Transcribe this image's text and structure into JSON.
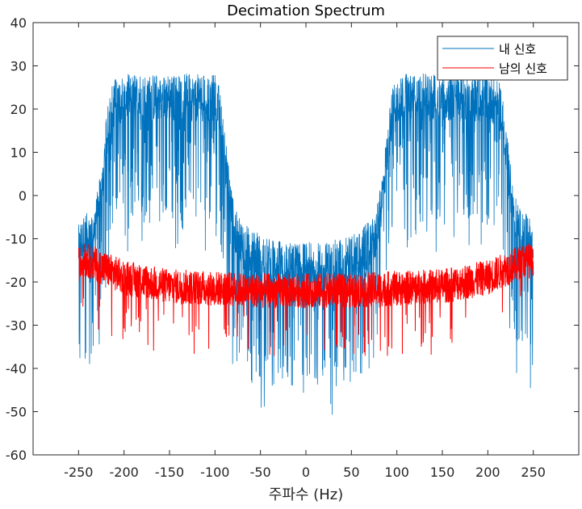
{
  "chart_data": {
    "type": "line",
    "title": "Decimation Spectrum",
    "xlabel": "주파수 (Hz)",
    "ylabel": "",
    "xlim": [
      -300,
      300
    ],
    "ylim": [
      -60,
      40
    ],
    "xticks": [
      -250,
      -200,
      -150,
      -100,
      -50,
      0,
      50,
      100,
      150,
      200,
      250
    ],
    "yticks": [
      -60,
      -50,
      -40,
      -30,
      -20,
      -10,
      0,
      10,
      20,
      30,
      40
    ],
    "grid": false,
    "legend_position": "top-right",
    "series": [
      {
        "name": "내 신호",
        "color": "#0072BD",
        "envelope_x": [
          -250,
          -245,
          -240,
          -235,
          -230,
          -225,
          -220,
          -215,
          -210,
          -200,
          -150,
          -100,
          -95,
          -90,
          -85,
          -80,
          -75,
          -60,
          -40,
          -20,
          0,
          20,
          40,
          60,
          75,
          80,
          85,
          90,
          95,
          100,
          150,
          200,
          210,
          215,
          220,
          225,
          230,
          235,
          240,
          245,
          250
        ],
        "envelope_mean": [
          -14,
          -12,
          -11,
          -10,
          -7,
          0,
          10,
          18,
          20,
          21,
          21,
          21,
          18,
          10,
          0,
          -8,
          -12,
          -15,
          -17,
          -18,
          -18,
          -18,
          -17,
          -15,
          -12,
          -8,
          0,
          10,
          18,
          21,
          21,
          21,
          20,
          18,
          10,
          0,
          -7,
          -10,
          -11,
          -12,
          -14
        ],
        "peak_max": 32,
        "peak_min": -52
      },
      {
        "name": "남의 신호",
        "color": "#FF0000",
        "envelope_x": [
          -250,
          -245,
          -240,
          -230,
          -220,
          -200,
          -150,
          -100,
          -50,
          0,
          50,
          100,
          150,
          200,
          220,
          230,
          240,
          245,
          250
        ],
        "envelope_mean": [
          -16,
          -15,
          -15,
          -16,
          -17,
          -19,
          -21,
          -21.5,
          -22,
          -22,
          -22,
          -21.5,
          -21,
          -19,
          -17,
          -16,
          -15,
          -15,
          -16
        ],
        "peak_max": -9,
        "peak_min": -37
      }
    ]
  }
}
